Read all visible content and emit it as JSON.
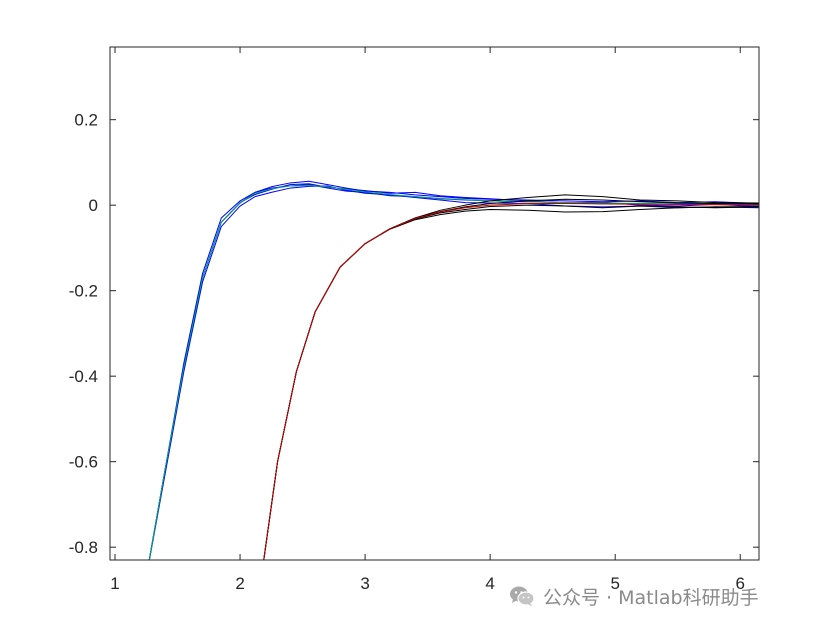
{
  "chart_data": {
    "type": "line",
    "title": "",
    "xlabel": "",
    "ylabel": "",
    "xlim": [
      0.96,
      6.15
    ],
    "ylim": [
      -0.83,
      0.37
    ],
    "x_ticks": [
      1,
      2,
      3,
      4,
      5,
      6
    ],
    "y_ticks": [
      -0.8,
      -0.6,
      -0.4,
      -0.2,
      0,
      0.2
    ],
    "y_tick_labels": [
      "-0.8",
      "-0.6",
      "-0.4",
      "-0.2",
      "0",
      "0.2"
    ],
    "grid": false,
    "legend": "none",
    "box": true,
    "series": [
      {
        "color": "#0000ff",
        "values": [
          [
            1.25,
            -0.87
          ],
          [
            1.4,
            -0.62
          ],
          [
            1.55,
            -0.38
          ],
          [
            1.7,
            -0.17
          ],
          [
            1.85,
            -0.04
          ],
          [
            2.0,
            0.005
          ],
          [
            2.12,
            0.03
          ],
          [
            2.25,
            0.04
          ],
          [
            2.4,
            0.045
          ],
          [
            2.55,
            0.048
          ],
          [
            2.7,
            0.04
          ],
          [
            2.85,
            0.033
          ],
          [
            3.0,
            0.03
          ],
          [
            3.2,
            0.022
          ],
          [
            3.4,
            0.02
          ],
          [
            3.6,
            0.015
          ],
          [
            3.8,
            0.012
          ],
          [
            4.0,
            0.01
          ],
          [
            4.3,
            0.008
          ],
          [
            4.6,
            0.006
          ],
          [
            4.9,
            0.003
          ],
          [
            5.2,
            0.004
          ],
          [
            5.5,
            0.002
          ],
          [
            5.8,
            0.003
          ],
          [
            6.15,
            0.0
          ]
        ]
      },
      {
        "color": "#0000ff",
        "values": [
          [
            1.25,
            -0.87
          ],
          [
            1.4,
            -0.62
          ],
          [
            1.55,
            -0.37
          ],
          [
            1.7,
            -0.16
          ],
          [
            1.85,
            -0.03
          ],
          [
            2.0,
            0.01
          ],
          [
            2.12,
            0.03
          ],
          [
            2.25,
            0.043
          ],
          [
            2.4,
            0.052
          ],
          [
            2.55,
            0.056
          ],
          [
            2.7,
            0.048
          ],
          [
            2.85,
            0.04
          ],
          [
            3.0,
            0.033
          ],
          [
            3.2,
            0.03
          ],
          [
            3.4,
            0.024
          ],
          [
            3.6,
            0.02
          ],
          [
            3.8,
            0.016
          ],
          [
            4.0,
            0.014
          ],
          [
            4.3,
            0.012
          ],
          [
            4.6,
            0.01
          ],
          [
            4.9,
            0.008
          ],
          [
            5.2,
            0.01
          ],
          [
            5.5,
            0.006
          ],
          [
            5.8,
            0.008
          ],
          [
            6.15,
            0.004
          ]
        ]
      },
      {
        "color": "#0000ff",
        "values": [
          [
            1.25,
            -0.87
          ],
          [
            1.4,
            -0.63
          ],
          [
            1.55,
            -0.39
          ],
          [
            1.7,
            -0.18
          ],
          [
            1.85,
            -0.05
          ],
          [
            2.0,
            -0.002
          ],
          [
            2.12,
            0.02
          ],
          [
            2.25,
            0.03
          ],
          [
            2.4,
            0.04
          ],
          [
            2.55,
            0.044
          ],
          [
            2.7,
            0.045
          ],
          [
            2.85,
            0.035
          ],
          [
            3.0,
            0.028
          ],
          [
            3.2,
            0.024
          ],
          [
            3.4,
            0.018
          ],
          [
            3.6,
            0.012
          ],
          [
            3.8,
            0.006
          ],
          [
            4.0,
            0.005
          ],
          [
            4.3,
            0.004
          ],
          [
            4.6,
            -0.002
          ],
          [
            4.9,
            -0.004
          ],
          [
            5.2,
            -0.002
          ],
          [
            5.5,
            -0.006
          ],
          [
            5.8,
            -0.004
          ],
          [
            6.15,
            -0.006
          ]
        ]
      },
      {
        "color": "#0000ff",
        "values": [
          [
            1.25,
            -0.87
          ],
          [
            1.4,
            -0.62
          ],
          [
            1.55,
            -0.38
          ],
          [
            1.7,
            -0.17
          ],
          [
            1.85,
            -0.04
          ],
          [
            2.0,
            0.006
          ],
          [
            2.12,
            0.025
          ],
          [
            2.25,
            0.037
          ],
          [
            2.4,
            0.048
          ],
          [
            2.55,
            0.05
          ],
          [
            2.7,
            0.042
          ],
          [
            2.85,
            0.038
          ],
          [
            3.0,
            0.034
          ],
          [
            3.2,
            0.028
          ],
          [
            3.4,
            0.03
          ],
          [
            3.6,
            0.022
          ],
          [
            3.8,
            0.018
          ],
          [
            4.0,
            0.015
          ],
          [
            4.3,
            0.01
          ],
          [
            4.6,
            0.005
          ],
          [
            4.9,
            0.007
          ],
          [
            5.2,
            0.0
          ],
          [
            5.5,
            -0.002
          ],
          [
            5.8,
            0.002
          ],
          [
            6.15,
            -0.003
          ]
        ]
      },
      {
        "color": "#00aa66",
        "values": [
          [
            1.25,
            -0.87
          ],
          [
            1.4,
            -0.62
          ],
          [
            1.55,
            -0.38
          ],
          [
            1.7,
            -0.17
          ],
          [
            1.85,
            -0.04
          ],
          [
            2.0,
            0.005
          ],
          [
            2.12,
            0.028
          ],
          [
            2.25,
            0.038
          ],
          [
            2.4,
            0.045
          ],
          [
            2.55,
            0.046
          ],
          [
            2.7,
            0.043
          ],
          [
            2.85,
            0.037
          ],
          [
            3.0,
            0.031
          ],
          [
            3.2,
            0.025
          ],
          [
            3.4,
            0.02
          ],
          [
            3.6,
            0.016
          ],
          [
            3.8,
            0.013
          ],
          [
            4.0,
            0.01
          ],
          [
            4.3,
            0.008
          ],
          [
            4.6,
            0.006
          ],
          [
            4.9,
            0.005
          ],
          [
            5.2,
            0.004
          ],
          [
            5.5,
            0.003
          ],
          [
            5.8,
            0.003
          ],
          [
            6.15,
            0.002
          ]
        ]
      },
      {
        "color": "#000000",
        "values": [
          [
            2.18,
            -0.85
          ],
          [
            2.3,
            -0.6
          ],
          [
            2.45,
            -0.39
          ],
          [
            2.6,
            -0.25
          ],
          [
            2.8,
            -0.145
          ],
          [
            3.0,
            -0.09
          ],
          [
            3.2,
            -0.055
          ],
          [
            3.4,
            -0.03
          ],
          [
            3.6,
            -0.015
          ],
          [
            3.8,
            -0.004
          ],
          [
            4.0,
            0.004
          ],
          [
            4.3,
            0.01
          ],
          [
            4.6,
            0.014
          ],
          [
            4.9,
            0.012
          ],
          [
            5.2,
            0.008
          ],
          [
            5.5,
            0.005
          ],
          [
            5.8,
            0.004
          ],
          [
            6.15,
            0.003
          ]
        ]
      },
      {
        "color": "#000000",
        "values": [
          [
            2.18,
            -0.85
          ],
          [
            2.3,
            -0.6
          ],
          [
            2.45,
            -0.39
          ],
          [
            2.6,
            -0.25
          ],
          [
            2.8,
            -0.145
          ],
          [
            3.0,
            -0.09
          ],
          [
            3.2,
            -0.055
          ],
          [
            3.4,
            -0.032
          ],
          [
            3.6,
            -0.018
          ],
          [
            3.8,
            -0.01
          ],
          [
            4.0,
            -0.003
          ],
          [
            4.3,
            0.0
          ],
          [
            4.6,
            -0.002
          ],
          [
            4.9,
            -0.006
          ],
          [
            5.2,
            -0.002
          ],
          [
            5.5,
            -0.004
          ],
          [
            5.8,
            -0.006
          ],
          [
            6.15,
            -0.004
          ]
        ]
      },
      {
        "color": "#000000",
        "values": [
          [
            2.18,
            -0.85
          ],
          [
            2.3,
            -0.6
          ],
          [
            2.45,
            -0.39
          ],
          [
            2.6,
            -0.25
          ],
          [
            2.8,
            -0.145
          ],
          [
            3.0,
            -0.09
          ],
          [
            3.2,
            -0.055
          ],
          [
            3.4,
            -0.03
          ],
          [
            3.6,
            -0.012
          ],
          [
            3.8,
            0.0
          ],
          [
            4.0,
            0.01
          ],
          [
            4.3,
            0.018
          ],
          [
            4.6,
            0.024
          ],
          [
            4.9,
            0.02
          ],
          [
            5.2,
            0.012
          ],
          [
            5.5,
            0.01
          ],
          [
            5.8,
            0.006
          ],
          [
            6.15,
            0.005
          ]
        ]
      },
      {
        "color": "#000000",
        "values": [
          [
            2.18,
            -0.85
          ],
          [
            2.3,
            -0.6
          ],
          [
            2.45,
            -0.39
          ],
          [
            2.6,
            -0.25
          ],
          [
            2.8,
            -0.145
          ],
          [
            3.0,
            -0.09
          ],
          [
            3.2,
            -0.056
          ],
          [
            3.4,
            -0.034
          ],
          [
            3.6,
            -0.022
          ],
          [
            3.8,
            -0.014
          ],
          [
            4.0,
            -0.01
          ],
          [
            4.3,
            -0.012
          ],
          [
            4.6,
            -0.016
          ],
          [
            4.9,
            -0.015
          ],
          [
            5.2,
            -0.01
          ],
          [
            5.5,
            -0.006
          ],
          [
            5.8,
            -0.004
          ],
          [
            6.15,
            -0.003
          ]
        ]
      },
      {
        "color": "#cc0000",
        "values": [
          [
            2.18,
            -0.85
          ],
          [
            2.3,
            -0.6
          ],
          [
            2.45,
            -0.39
          ],
          [
            2.6,
            -0.25
          ],
          [
            2.8,
            -0.145
          ],
          [
            3.0,
            -0.09
          ],
          [
            3.2,
            -0.055
          ],
          [
            3.4,
            -0.031
          ],
          [
            3.6,
            -0.016
          ],
          [
            3.8,
            -0.006
          ],
          [
            4.0,
            0.0
          ],
          [
            4.3,
            0.004
          ],
          [
            4.6,
            0.004
          ],
          [
            4.9,
            0.003
          ],
          [
            5.2,
            0.002
          ],
          [
            5.5,
            0.002
          ],
          [
            5.8,
            0.001
          ],
          [
            6.15,
            0.001
          ]
        ]
      }
    ]
  },
  "watermark": {
    "icon": "wechat-icon",
    "text": "公众号 · Matlab科研助手"
  }
}
